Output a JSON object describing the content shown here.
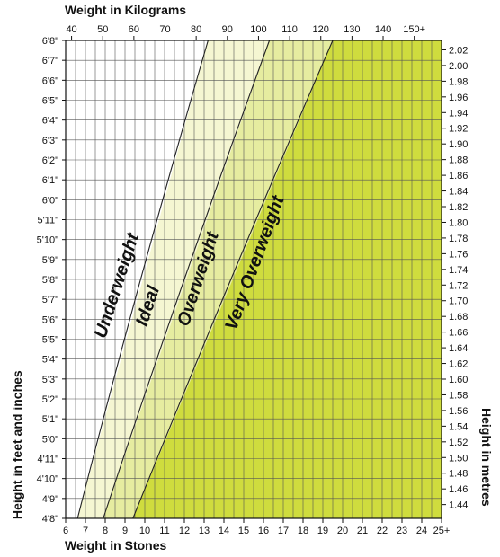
{
  "chart_data": {
    "type": "area",
    "top_axis": {
      "label": "Weight in Kilograms",
      "ticks": [
        {
          "value": 40,
          "label": "40"
        },
        {
          "value": 50,
          "label": "50"
        },
        {
          "value": 60,
          "label": "60"
        },
        {
          "value": 70,
          "label": "70"
        },
        {
          "value": 80,
          "label": "80"
        },
        {
          "value": 90,
          "label": "90"
        },
        {
          "value": 100,
          "label": "100"
        },
        {
          "value": 110,
          "label": "110"
        },
        {
          "value": 120,
          "label": "120"
        },
        {
          "value": 130,
          "label": "130"
        },
        {
          "value": 140,
          "label": "140"
        },
        {
          "value": 150,
          "label": "150+"
        }
      ]
    },
    "bottom_axis": {
      "label": "Weight in Stones",
      "range": [
        6,
        25
      ],
      "ticks": [
        {
          "value": 6,
          "label": "6"
        },
        {
          "value": 7,
          "label": "7"
        },
        {
          "value": 8,
          "label": "8"
        },
        {
          "value": 9,
          "label": "9"
        },
        {
          "value": 10,
          "label": "10"
        },
        {
          "value": 11,
          "label": "11"
        },
        {
          "value": 12,
          "label": "12"
        },
        {
          "value": 13,
          "label": "13"
        },
        {
          "value": 14,
          "label": "14"
        },
        {
          "value": 15,
          "label": "15"
        },
        {
          "value": 16,
          "label": "16"
        },
        {
          "value": 17,
          "label": "17"
        },
        {
          "value": 18,
          "label": "18"
        },
        {
          "value": 19,
          "label": "19"
        },
        {
          "value": 20,
          "label": "20"
        },
        {
          "value": 21,
          "label": "21"
        },
        {
          "value": 22,
          "label": "22"
        },
        {
          "value": 23,
          "label": "23"
        },
        {
          "value": 24,
          "label": "24"
        },
        {
          "value": 25,
          "label": "25+"
        }
      ]
    },
    "left_axis": {
      "label": "Height in feet and inches",
      "range_inches": [
        56,
        80
      ],
      "ticks": [
        {
          "value": 80,
          "label": "6'8\""
        },
        {
          "value": 79,
          "label": "6'7\""
        },
        {
          "value": 78,
          "label": "6'6\""
        },
        {
          "value": 77,
          "label": "6'5\""
        },
        {
          "value": 76,
          "label": "6'4\""
        },
        {
          "value": 75,
          "label": "6'3\""
        },
        {
          "value": 74,
          "label": "6'2\""
        },
        {
          "value": 73,
          "label": "6'1\""
        },
        {
          "value": 72,
          "label": "6'0\""
        },
        {
          "value": 71,
          "label": "5'11\""
        },
        {
          "value": 70,
          "label": "5'10\""
        },
        {
          "value": 69,
          "label": "5'9\""
        },
        {
          "value": 68,
          "label": "5'8\""
        },
        {
          "value": 67,
          "label": "5'7\""
        },
        {
          "value": 66,
          "label": "5'6\""
        },
        {
          "value": 65,
          "label": "5'5\""
        },
        {
          "value": 64,
          "label": "5'4\""
        },
        {
          "value": 63,
          "label": "5'3\""
        },
        {
          "value": 62,
          "label": "5'2\""
        },
        {
          "value": 61,
          "label": "5'1\""
        },
        {
          "value": 60,
          "label": "5'0\""
        },
        {
          "value": 59,
          "label": "4'11\""
        },
        {
          "value": 58,
          "label": "4'10\""
        },
        {
          "value": 57,
          "label": "4'9\""
        },
        {
          "value": 56,
          "label": "4'8\""
        }
      ]
    },
    "right_axis": {
      "label": "Height in metres",
      "ticks": [
        {
          "value": 2.02,
          "label": "2.02"
        },
        {
          "value": 2.0,
          "label": "2.00"
        },
        {
          "value": 1.98,
          "label": "1.98"
        },
        {
          "value": 1.96,
          "label": "1.96"
        },
        {
          "value": 1.94,
          "label": "1.94"
        },
        {
          "value": 1.92,
          "label": "1.92"
        },
        {
          "value": 1.9,
          "label": "1.90"
        },
        {
          "value": 1.88,
          "label": "1.88"
        },
        {
          "value": 1.86,
          "label": "1.86"
        },
        {
          "value": 1.84,
          "label": "1.84"
        },
        {
          "value": 1.82,
          "label": "1.82"
        },
        {
          "value": 1.8,
          "label": "1.80"
        },
        {
          "value": 1.78,
          "label": "1.78"
        },
        {
          "value": 1.76,
          "label": "1.76"
        },
        {
          "value": 1.74,
          "label": "1.74"
        },
        {
          "value": 1.72,
          "label": "1.72"
        },
        {
          "value": 1.7,
          "label": "1.70"
        },
        {
          "value": 1.68,
          "label": "1.68"
        },
        {
          "value": 1.66,
          "label": "1.66"
        },
        {
          "value": 1.64,
          "label": "1.64"
        },
        {
          "value": 1.62,
          "label": "1.62"
        },
        {
          "value": 1.6,
          "label": "1.60"
        },
        {
          "value": 1.58,
          "label": "1.58"
        },
        {
          "value": 1.56,
          "label": "1.56"
        },
        {
          "value": 1.54,
          "label": "1.54"
        },
        {
          "value": 1.52,
          "label": "1.52"
        },
        {
          "value": 1.5,
          "label": "1.50"
        },
        {
          "value": 1.48,
          "label": "1.48"
        },
        {
          "value": 1.46,
          "label": "1.46"
        },
        {
          "value": 1.44,
          "label": "1.44"
        }
      ]
    },
    "zones": [
      {
        "name": "Underweight",
        "color": "#ffffff"
      },
      {
        "name": "Ideal",
        "color": "#f5f6d2"
      },
      {
        "name": "Overweight",
        "color": "#e6eca0"
      },
      {
        "name": "Very Overweight",
        "color": "#cfdc3e"
      }
    ],
    "boundaries": [
      {
        "between": "Underweight-Ideal",
        "points": [
          [
            6.6,
            56
          ],
          [
            13.2,
            80
          ]
        ]
      },
      {
        "between": "Ideal-Overweight",
        "points": [
          [
            7.9,
            56
          ],
          [
            16.3,
            80
          ]
        ]
      },
      {
        "between": "Overweight-Very Overweight",
        "points": [
          [
            9.4,
            56
          ],
          [
            19.5,
            80
          ]
        ]
      }
    ],
    "grid": true
  }
}
